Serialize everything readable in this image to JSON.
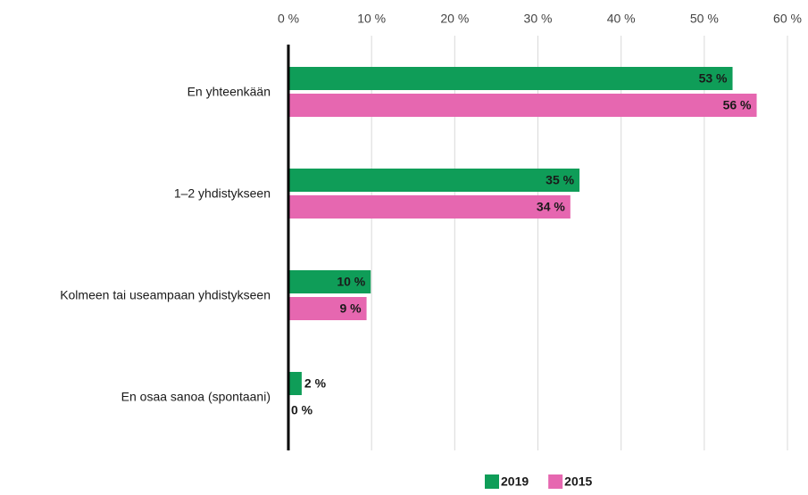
{
  "chart_data": {
    "type": "bar",
    "orientation": "horizontal",
    "categories": [
      "En yhteenkään",
      "1–2 yhdistykseen",
      "Kolmeen tai useampaan yhdistykseen",
      "En osaa sanoa (spontaani)"
    ],
    "series": [
      {
        "name": "2019",
        "color": "#0f9d58",
        "values": [
          53.4,
          35,
          9.9,
          1.6
        ],
        "value_labels": [
          "53 %",
          "35 %",
          "10 %",
          "2 %"
        ]
      },
      {
        "name": "2015",
        "color": "#e667b0",
        "values": [
          56.3,
          33.9,
          9.4,
          0
        ],
        "value_labels": [
          "56 %",
          "34 %",
          "9 %",
          "0 %"
        ]
      }
    ],
    "xlim": [
      0,
      60
    ],
    "xticks": [
      {
        "value": 0,
        "label": "0 %"
      },
      {
        "value": 10,
        "label": "10 %"
      },
      {
        "value": 20,
        "label": "20 %"
      },
      {
        "value": 30,
        "label": "30 %"
      },
      {
        "value": 40,
        "label": "40 %"
      },
      {
        "value": 50,
        "label": "50 %"
      },
      {
        "value": 60,
        "label": "60 %"
      }
    ],
    "grid": true,
    "legend": "bottom"
  }
}
